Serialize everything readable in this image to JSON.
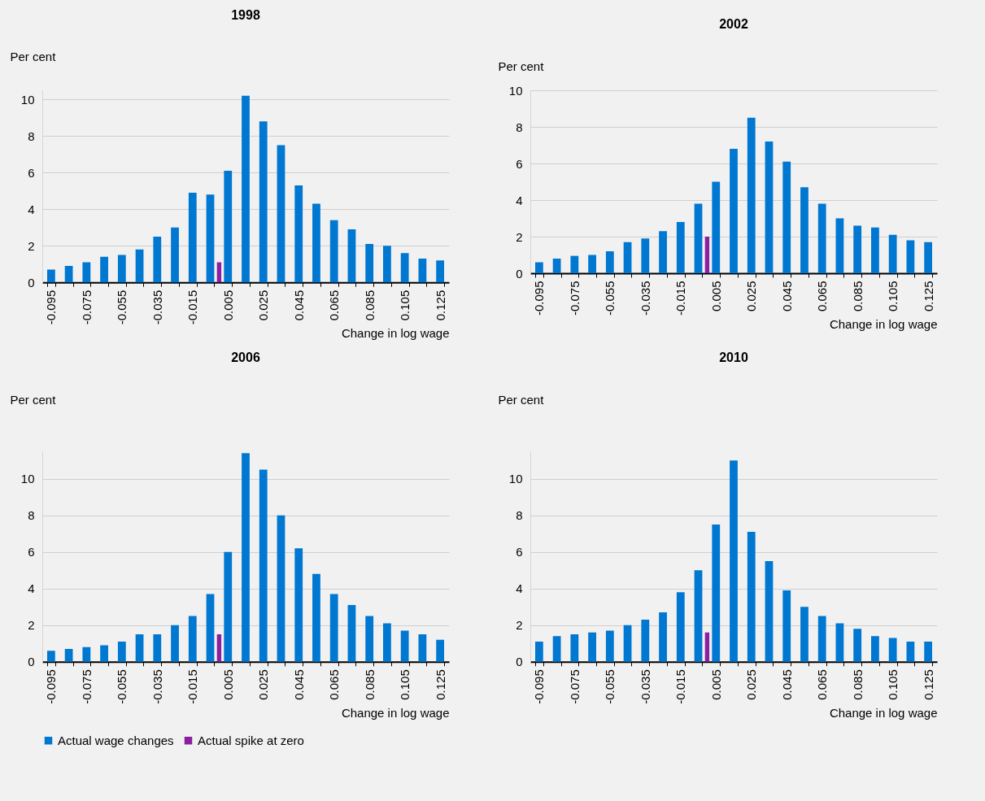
{
  "chart_data": [
    {
      "type": "bar",
      "title": "1998",
      "ylabel": "Per cent",
      "xlabel": "Change in log wage",
      "categories": [
        "-0.095",
        null,
        "-0.075",
        null,
        "-0.055",
        null,
        "-0.035",
        null,
        "-0.015",
        null,
        "0.005",
        null,
        "0.025",
        null,
        "0.045",
        null,
        "0.065",
        null,
        "0.085",
        null,
        "0.105",
        null,
        "0.125"
      ],
      "series": [
        {
          "name": "Actual wage changes",
          "color": "#0077d1",
          "values": [
            0.7,
            0.9,
            1.1,
            1.4,
            1.5,
            1.8,
            2.5,
            3.0,
            4.9,
            4.8,
            6.1,
            10.2,
            8.8,
            7.5,
            5.3,
            4.3,
            3.4,
            2.9,
            2.1,
            2.0,
            1.6,
            1.3,
            1.2
          ]
        },
        {
          "name": "Actual spike at zero",
          "color": "#8b1fa0",
          "values": [
            null,
            null,
            null,
            null,
            null,
            null,
            null,
            null,
            null,
            1.1,
            null,
            null,
            null,
            null,
            null,
            null,
            null,
            null,
            null,
            null,
            null,
            null,
            null
          ]
        }
      ],
      "ylim": [
        0,
        10.5
      ],
      "yticks": [
        0,
        2,
        4,
        6,
        8,
        10
      ],
      "grid": "y",
      "legend": "bottom"
    },
    {
      "type": "bar",
      "title": "2002",
      "ylabel": "Per cent",
      "xlabel": "Change in log wage",
      "categories": [
        "-0.095",
        null,
        "-0.075",
        null,
        "-0.055",
        null,
        "-0.035",
        null,
        "-0.015",
        null,
        "0.005",
        null,
        "0.025",
        null,
        "0.045",
        null,
        "0.065",
        null,
        "0.085",
        null,
        "0.105",
        null,
        "0.125"
      ],
      "series": [
        {
          "name": "Actual wage changes",
          "color": "#0077d1",
          "values": [
            0.6,
            0.8,
            0.95,
            1.0,
            1.2,
            1.7,
            1.9,
            2.3,
            2.8,
            3.8,
            5.0,
            6.8,
            8.5,
            7.2,
            6.1,
            4.7,
            3.8,
            3.0,
            2.6,
            2.5,
            2.1,
            1.8,
            1.7
          ]
        },
        {
          "name": "Actual spike at zero",
          "color": "#8b1fa0",
          "values": [
            null,
            null,
            null,
            null,
            null,
            null,
            null,
            null,
            null,
            2.0,
            null,
            null,
            null,
            null,
            null,
            null,
            null,
            null,
            null,
            null,
            null,
            null,
            null
          ]
        }
      ],
      "ylim": [
        0,
        10
      ],
      "yticks": [
        0,
        2,
        4,
        6,
        8,
        10
      ],
      "grid": "y",
      "legend": "bottom"
    },
    {
      "type": "bar",
      "title": "2006",
      "ylabel": "Per cent",
      "xlabel": "Change in log wage",
      "categories": [
        "-0.095",
        null,
        "-0.075",
        null,
        "-0.055",
        null,
        "-0.035",
        null,
        "-0.015",
        null,
        "0.005",
        null,
        "0.025",
        null,
        "0.045",
        null,
        "0.065",
        null,
        "0.085",
        null,
        "0.105",
        null,
        "0.125"
      ],
      "series": [
        {
          "name": "Actual wage changes",
          "color": "#0077d1",
          "values": [
            0.6,
            0.7,
            0.8,
            0.9,
            1.1,
            1.5,
            1.5,
            2.0,
            2.5,
            3.7,
            6.0,
            11.4,
            10.5,
            8.0,
            6.2,
            4.8,
            3.7,
            3.1,
            2.5,
            2.1,
            1.7,
            1.5,
            1.2
          ]
        },
        {
          "name": "Actual spike at zero",
          "color": "#8b1fa0",
          "values": [
            null,
            null,
            null,
            null,
            null,
            null,
            null,
            null,
            null,
            1.5,
            null,
            null,
            null,
            null,
            null,
            null,
            null,
            null,
            null,
            null,
            null,
            null,
            null
          ]
        }
      ],
      "ylim": [
        0,
        11.5
      ],
      "yticks": [
        0,
        2,
        4,
        6,
        8,
        10
      ],
      "grid": "y",
      "legend": "bottom"
    },
    {
      "type": "bar",
      "title": "2010",
      "ylabel": "Per cent",
      "xlabel": "Change in log wage",
      "categories": [
        "-0.095",
        null,
        "-0.075",
        null,
        "-0.055",
        null,
        "-0.035",
        null,
        "-0.015",
        null,
        "0.005",
        null,
        "0.025",
        null,
        "0.045",
        null,
        "0.065",
        null,
        "0.085",
        null,
        "0.105",
        null,
        "0.125"
      ],
      "series": [
        {
          "name": "Actual wage changes",
          "color": "#0077d1",
          "values": [
            1.1,
            1.4,
            1.5,
            1.6,
            1.7,
            2.0,
            2.3,
            2.7,
            3.8,
            5.0,
            7.5,
            11.0,
            7.1,
            5.5,
            3.9,
            3.0,
            2.5,
            2.1,
            1.8,
            1.4,
            1.3,
            1.1,
            1.1
          ]
        },
        {
          "name": "Actual spike at zero",
          "color": "#8b1fa0",
          "values": [
            null,
            null,
            null,
            null,
            null,
            null,
            null,
            null,
            null,
            1.6,
            null,
            null,
            null,
            null,
            null,
            null,
            null,
            null,
            null,
            null,
            null,
            null,
            null
          ]
        }
      ],
      "ylim": [
        0,
        11.5
      ],
      "yticks": [
        0,
        2,
        4,
        6,
        8,
        10
      ],
      "grid": "y",
      "legend": "bottom"
    }
  ]
}
